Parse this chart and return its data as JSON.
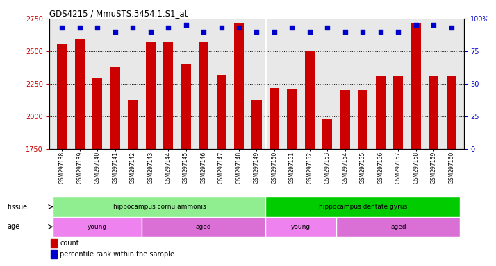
{
  "title": "GDS4215 / MmuSTS.3454.1.S1_at",
  "samples": [
    "GSM297138",
    "GSM297139",
    "GSM297140",
    "GSM297141",
    "GSM297142",
    "GSM297143",
    "GSM297144",
    "GSM297145",
    "GSM297146",
    "GSM297147",
    "GSM297148",
    "GSM297149",
    "GSM297150",
    "GSM297151",
    "GSM297152",
    "GSM297153",
    "GSM297154",
    "GSM297155",
    "GSM297156",
    "GSM297157",
    "GSM297158",
    "GSM297159",
    "GSM297160"
  ],
  "counts": [
    2560,
    2590,
    2300,
    2380,
    2130,
    2570,
    2570,
    2400,
    2570,
    2320,
    2720,
    2130,
    2220,
    2210,
    2500,
    1980,
    2200,
    2200,
    2310,
    2310,
    2720,
    2310,
    2310
  ],
  "percentiles": [
    93,
    93,
    93,
    90,
    93,
    90,
    93,
    95,
    90,
    93,
    93,
    90,
    90,
    93,
    90,
    93,
    90,
    90,
    90,
    90,
    95,
    95,
    93
  ],
  "ylim_left": [
    1750,
    2750
  ],
  "ylim_right": [
    0,
    100
  ],
  "yticks_left": [
    1750,
    2000,
    2250,
    2500,
    2750
  ],
  "yticks_right": [
    0,
    25,
    50,
    75,
    100
  ],
  "bar_color": "#cc0000",
  "dot_color": "#0000cc",
  "background_color": "#e8e8e8",
  "tissue_groups": [
    {
      "label": "hippocampus cornu ammonis",
      "start": 0,
      "end": 11,
      "color": "#90ee90"
    },
    {
      "label": "hippocampus dentate gyrus",
      "start": 12,
      "end": 22,
      "color": "#00cc00"
    }
  ],
  "age_groups": [
    {
      "label": "young",
      "start": 0,
      "end": 4,
      "color": "#ee82ee"
    },
    {
      "label": "aged",
      "start": 5,
      "end": 11,
      "color": "#da70d6"
    },
    {
      "label": "young",
      "start": 12,
      "end": 15,
      "color": "#ee82ee"
    },
    {
      "label": "aged",
      "start": 16,
      "end": 22,
      "color": "#da70d6"
    }
  ],
  "tissue_label": "tissue",
  "age_label": "age",
  "legend_count_label": "count",
  "legend_pct_label": "percentile rank within the sample",
  "grid_yticks": [
    2000,
    2250,
    2500
  ]
}
